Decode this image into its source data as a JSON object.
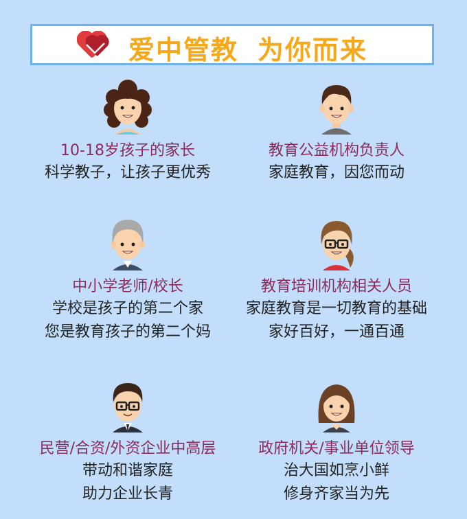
{
  "header": {
    "title_part1": "爱中管教",
    "title_part2": "为你而来",
    "logo_icon": "double-red-heart-icon"
  },
  "colors": {
    "background": "#c2defa",
    "header_border": "#6fb2ea",
    "title": "#f6a81b",
    "role": "#8b2b5c",
    "text": "#222222"
  },
  "cards": [
    {
      "role": "10-18岁孩子的家长",
      "lines": [
        "科学教子，让孩子更优秀"
      ]
    },
    {
      "role": "教育公益机构负责人",
      "lines": [
        "家庭教育，因您而动"
      ]
    },
    {
      "role": "中小学老师/校长",
      "lines": [
        "学校是孩子的第二个家",
        "您是教育孩子的第二个妈"
      ]
    },
    {
      "role": "教育培训机构相关人员",
      "lines": [
        "家庭教育是一切教育的基础",
        "家好百好，一通百通"
      ]
    },
    {
      "role": "民营/合资/外资企业中高层",
      "lines": [
        "带动和谐家庭",
        "助力企业长青"
      ]
    },
    {
      "role": "政府机关/事业单位领导",
      "lines": [
        "治大国如烹小鲜",
        "修身齐家当为先"
      ]
    }
  ]
}
